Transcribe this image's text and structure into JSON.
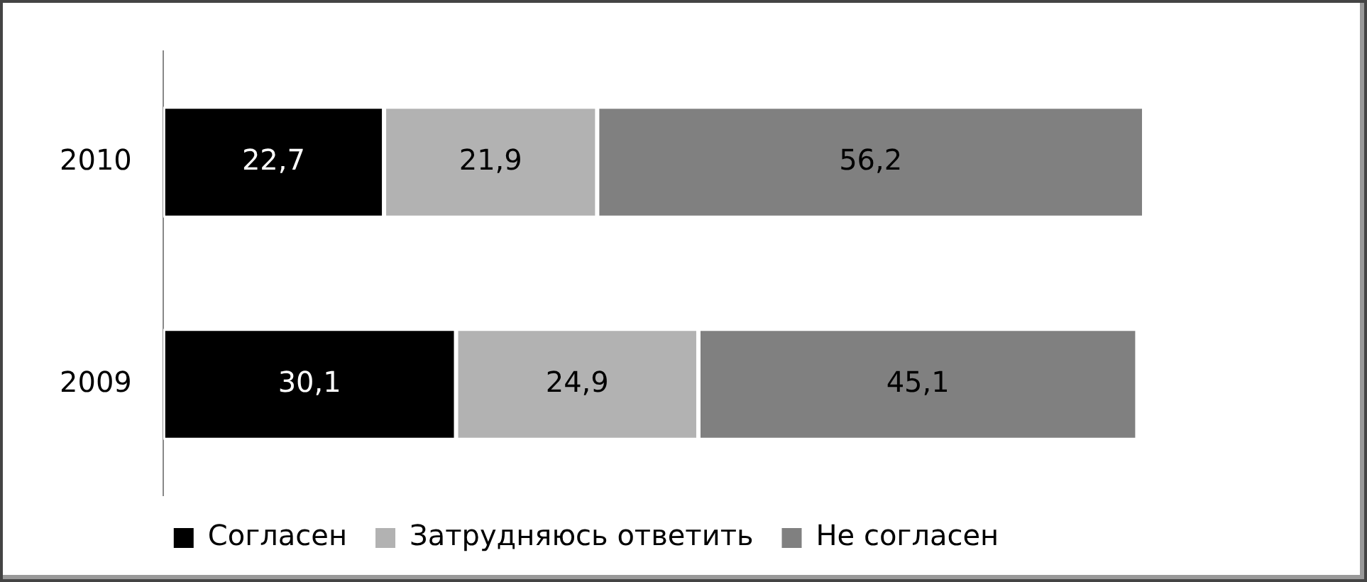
{
  "chart_data": {
    "type": "bar",
    "orientation": "horizontal",
    "stacked": true,
    "categories": [
      "2010",
      "2009"
    ],
    "series": [
      {
        "name": "Согласен",
        "color": "#000000",
        "values": [
          22.7,
          30.1
        ],
        "value_labels": [
          "22,7",
          "30,1"
        ]
      },
      {
        "name": "Затрудняюсь ответить",
        "color": "#b2b2b2",
        "values": [
          21.9,
          24.9
        ],
        "value_labels": [
          "21,9",
          "24,9"
        ]
      },
      {
        "name": "Не согласен",
        "color": "#808080",
        "values": [
          56.2,
          45.1
        ],
        "value_labels": [
          "56,2",
          "45,1"
        ]
      }
    ],
    "legend": "bottom"
  }
}
